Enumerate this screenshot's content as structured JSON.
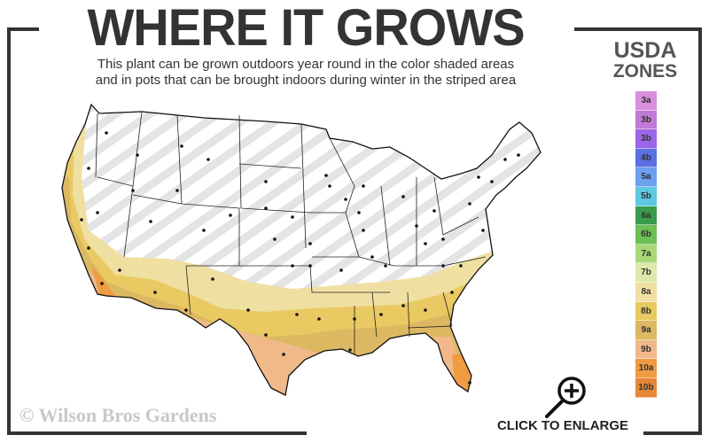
{
  "title": "WHERE IT GROWS",
  "subtitle_line1": "This plant can be grown outdoors year round in the color shaded areas",
  "subtitle_line2": "and in pots that can be brought indoors during winter in the striped area",
  "legend": {
    "title_line1": "USDA",
    "title_line2": "ZONES",
    "zones": [
      {
        "label": "3a",
        "color": "#d98ee0"
      },
      {
        "label": "3b",
        "color": "#c27ad6"
      },
      {
        "label": "3b",
        "color": "#9c66e8"
      },
      {
        "label": "4b",
        "color": "#5b70e2"
      },
      {
        "label": "5a",
        "color": "#6c9ff0"
      },
      {
        "label": "5b",
        "color": "#5ec8e2"
      },
      {
        "label": "6a",
        "color": "#3b9b4c"
      },
      {
        "label": "6b",
        "color": "#6cbf52"
      },
      {
        "label": "7a",
        "color": "#a8d878"
      },
      {
        "label": "7b",
        "color": "#dde9aa"
      },
      {
        "label": "8a",
        "color": "#efe0a2"
      },
      {
        "label": "8b",
        "color": "#e9c962"
      },
      {
        "label": "9a",
        "color": "#dcb862"
      },
      {
        "label": "9b",
        "color": "#f1b98a"
      },
      {
        "label": "10a",
        "color": "#ee9b42"
      },
      {
        "label": "10b",
        "color": "#e6873a"
      }
    ]
  },
  "copyright": "© Wilson Bros Gardens",
  "enlarge": {
    "label": "CLICK TO ENLARGE",
    "icon": "magnifier-plus-icon"
  }
}
